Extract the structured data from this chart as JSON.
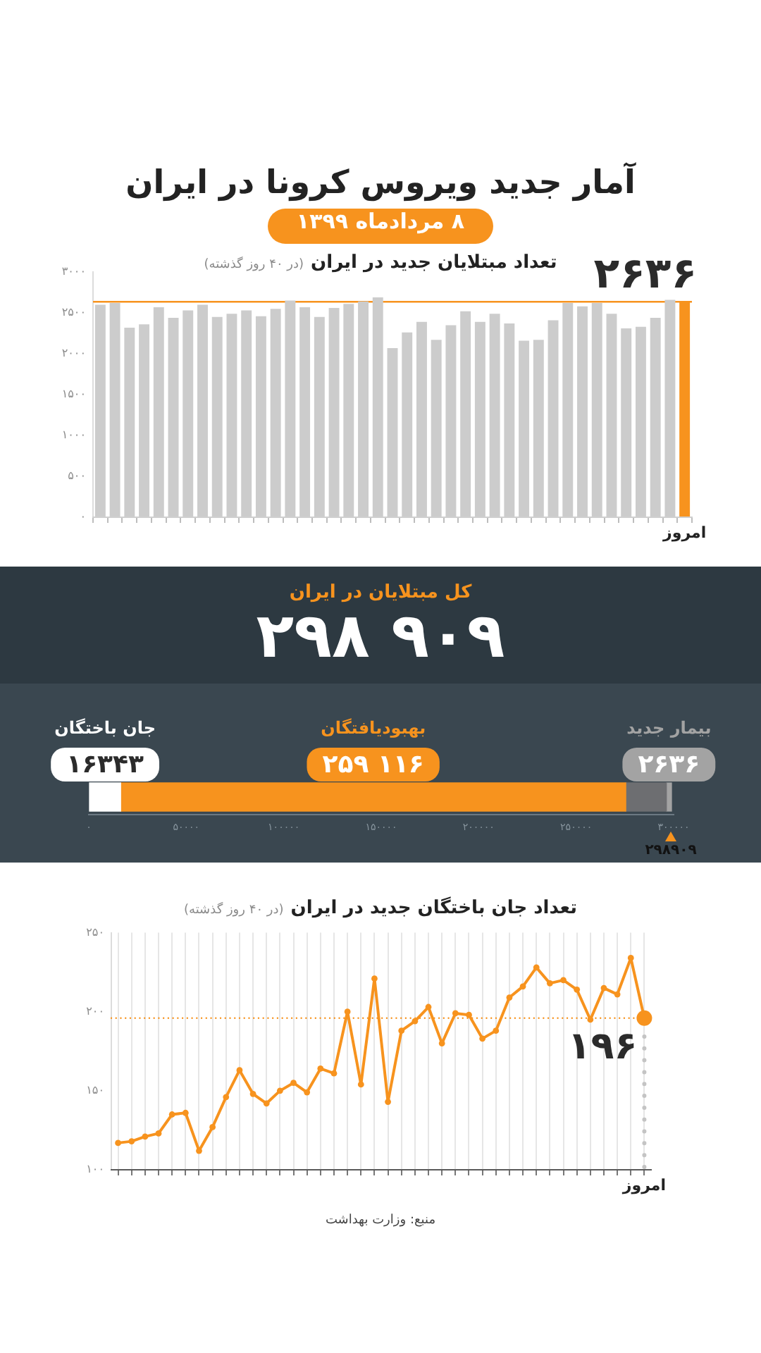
{
  "chart_data": [
    {
      "type": "other",
      "title": "آمار جدید ویروس کرونا در ایران",
      "subtitle": "۸ مردادماه ۱۳۹۹"
    },
    {
      "type": "bar",
      "title": "تعداد مبتلایان جدید در ایران",
      "subtitle": "(در ۴۰ روز گذشته)",
      "categories": [
        null,
        null,
        null,
        null,
        null,
        null,
        null,
        null,
        null,
        null,
        null,
        null,
        null,
        null,
        null,
        null,
        null,
        null,
        null,
        null,
        null,
        null,
        null,
        null,
        null,
        null,
        null,
        null,
        null,
        null,
        null,
        null,
        null,
        null,
        null,
        null,
        null,
        null,
        null,
        null,
        "امروز"
      ],
      "values": [
        2600,
        2620,
        2320,
        2360,
        2570,
        2440,
        2530,
        2600,
        2450,
        2490,
        2530,
        2460,
        2550,
        2650,
        2570,
        2450,
        2560,
        2610,
        2640,
        2690,
        2070,
        2260,
        2390,
        2170,
        2350,
        2520,
        2390,
        2490,
        2370,
        2160,
        2170,
        2410,
        2620,
        2580,
        2620,
        2490,
        2310,
        2330,
        2440,
        2660,
        2636
      ],
      "colors": [
        "#cccccc",
        "#cccccc",
        "#cccccc",
        "#cccccc",
        "#cccccc",
        "#cccccc",
        "#cccccc",
        "#cccccc",
        "#cccccc",
        "#cccccc",
        "#cccccc",
        "#cccccc",
        "#cccccc",
        "#cccccc",
        "#cccccc",
        "#cccccc",
        "#cccccc",
        "#cccccc",
        "#cccccc",
        "#cccccc",
        "#cccccc",
        "#cccccc",
        "#cccccc",
        "#cccccc",
        "#cccccc",
        "#cccccc",
        "#cccccc",
        "#cccccc",
        "#cccccc",
        "#cccccc",
        "#cccccc",
        "#cccccc",
        "#cccccc",
        "#cccccc",
        "#cccccc",
        "#cccccc",
        "#cccccc",
        "#cccccc",
        "#cccccc",
        "#cccccc",
        "#f7931e"
      ],
      "value_labels": [
        null,
        null,
        null,
        null,
        null,
        null,
        null,
        null,
        null,
        null,
        null,
        null,
        null,
        null,
        null,
        null,
        null,
        null,
        null,
        null,
        null,
        null,
        null,
        null,
        null,
        null,
        null,
        null,
        null,
        null,
        null,
        null,
        null,
        null,
        null,
        null,
        null,
        null,
        null,
        null,
        "۲۶۳۶"
      ],
      "ylim": [
        0,
        3000
      ],
      "yticks": [
        {
          "value": 0,
          "label": "۰"
        },
        {
          "value": 500,
          "label": "۵۰۰"
        },
        {
          "value": 1000,
          "label": "۱۰۰۰"
        },
        {
          "value": 1500,
          "label": "۱۵۰۰"
        },
        {
          "value": 2000,
          "label": "۲۰۰۰"
        },
        {
          "value": 2500,
          "label": "۲۵۰۰"
        },
        {
          "value": 3000,
          "label": "۳۰۰۰"
        }
      ],
      "ref_lines": [
        {
          "axis": "y",
          "value": 2636,
          "color": "#f7931e"
        }
      ]
    },
    {
      "type": "bar",
      "orientation": "horizontal",
      "stacked": true,
      "title": "کل مبتلایان در ایران",
      "totals": [
        "۲۹۸ ۹۰۹"
      ],
      "categories": [
        null
      ],
      "series": [
        {
          "name": "جان باختگان",
          "color": "#ffffff",
          "values": [
            16343
          ],
          "value_labels": [
            "۱۶۳۴۳"
          ]
        },
        {
          "name": "بهبودیافتگان",
          "color": "#f7931e",
          "values": [
            259116
          ],
          "value_labels": [
            "۲۵۹ ۱۱۶"
          ]
        },
        {
          "color": "#6d6e71",
          "values": [
            20814
          ]
        },
        {
          "name": "بیمار جدید",
          "color": "#a3a3a3",
          "values": [
            2636
          ],
          "value_labels": [
            "۲۶۳۶"
          ]
        }
      ],
      "xlim": [
        0,
        300000
      ],
      "xticks": [
        {
          "value": 0,
          "label": "۰"
        },
        {
          "value": 50000,
          "label": "۵۰۰۰۰"
        },
        {
          "value": 100000,
          "label": "۱۰۰۰۰۰"
        },
        {
          "value": 150000,
          "label": "۱۵۰۰۰۰"
        },
        {
          "value": 200000,
          "label": "۲۰۰۰۰۰"
        },
        {
          "value": 250000,
          "label": "۲۵۰۰۰۰"
        },
        {
          "value": 300000,
          "label": "۳۰۰۰۰۰"
        }
      ],
      "annotations": [
        "۲۹۸۹۰۹"
      ]
    },
    {
      "type": "line",
      "title": "تعداد جان باختگان جدید در ایران",
      "subtitle": "(در ۴۰ روز گذشته)",
      "categories": [
        null,
        null,
        null,
        null,
        null,
        null,
        null,
        null,
        null,
        null,
        null,
        null,
        null,
        null,
        null,
        null,
        null,
        null,
        null,
        null,
        null,
        null,
        null,
        null,
        null,
        null,
        null,
        null,
        null,
        null,
        null,
        null,
        null,
        null,
        null,
        null,
        null,
        null,
        null,
        "امروز"
      ],
      "values": [
        117,
        118,
        121,
        123,
        135,
        136,
        112,
        127,
        146,
        163,
        148,
        142,
        150,
        155,
        149,
        164,
        161,
        200,
        154,
        221,
        143,
        188,
        194,
        203,
        180,
        199,
        198,
        183,
        188,
        209,
        216,
        228,
        218,
        220,
        214,
        195,
        215,
        211,
        234,
        196
      ],
      "color": "#f7931e",
      "marker": "circle",
      "value_labels": [
        null,
        null,
        null,
        null,
        null,
        null,
        null,
        null,
        null,
        null,
        null,
        null,
        null,
        null,
        null,
        null,
        null,
        null,
        null,
        null,
        null,
        null,
        null,
        null,
        null,
        null,
        null,
        null,
        null,
        null,
        null,
        null,
        null,
        null,
        null,
        null,
        null,
        null,
        null,
        "۱۹۶"
      ],
      "ylim": [
        100,
        250
      ],
      "yticks": [
        {
          "value": 100,
          "label": "۱۰۰"
        },
        {
          "value": 150,
          "label": "۱۵۰"
        },
        {
          "value": 200,
          "label": "۲۰۰"
        },
        {
          "value": 250,
          "label": "۲۵۰"
        }
      ],
      "grid": "x",
      "ref_lines": [
        {
          "axis": "y",
          "value": 196,
          "color": "#f7931e",
          "line_style": "dotted"
        },
        {
          "axis": "x",
          "value": "امروز",
          "color": "#c4c4c4",
          "line_style": "dotted"
        }
      ],
      "annotations": [
        "منبع: وزارت بهداشت"
      ]
    }
  ]
}
